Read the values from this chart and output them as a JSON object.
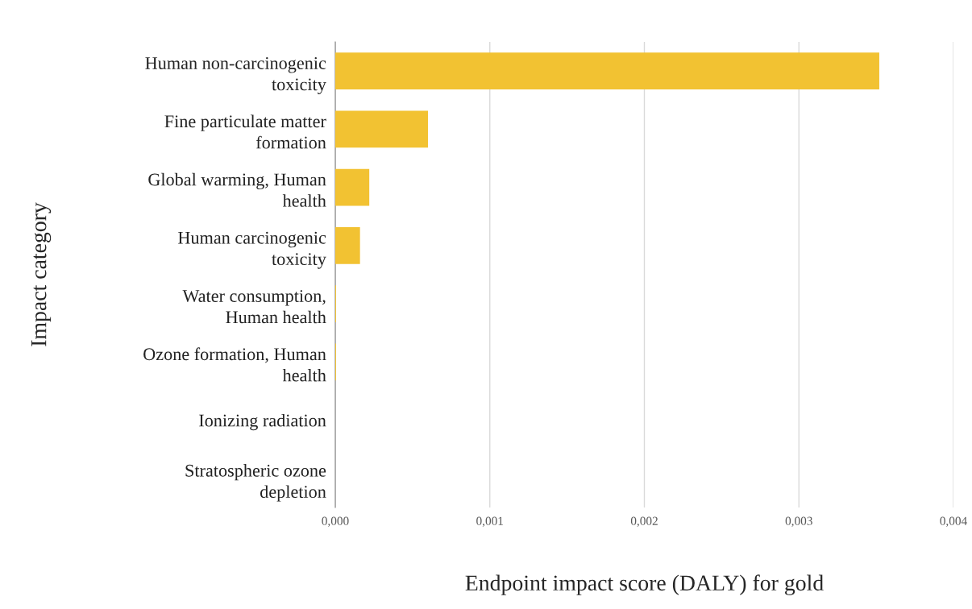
{
  "chart_data": {
    "type": "bar",
    "orientation": "horizontal",
    "categories": [
      "Human non-carcinogenic toxicity",
      "Fine particulate matter formation",
      "Global warming, Human health",
      "Human carcinogenic toxicity",
      "Water consumption, Human health",
      "Ozone formation, Human health",
      "Ionizing radiation",
      "Stratospheric ozone depletion"
    ],
    "values": [
      0.00352,
      0.0006,
      0.00022,
      0.00016,
      5e-06,
      5e-06,
      null,
      null
    ],
    "color": "#f2c232",
    "xlabel": "Endpoint impact score (DALY) for gold",
    "ylabel": "Impact category",
    "xlim": [
      0,
      0.004
    ],
    "xticks": [
      {
        "value": 0,
        "label": "0,000"
      },
      {
        "value": 0.001,
        "label": "0,001"
      },
      {
        "value": 0.002,
        "label": "0,002"
      },
      {
        "value": 0.003,
        "label": "0,003"
      },
      {
        "value": 0.004,
        "label": "0,004"
      }
    ],
    "grid": "x"
  }
}
